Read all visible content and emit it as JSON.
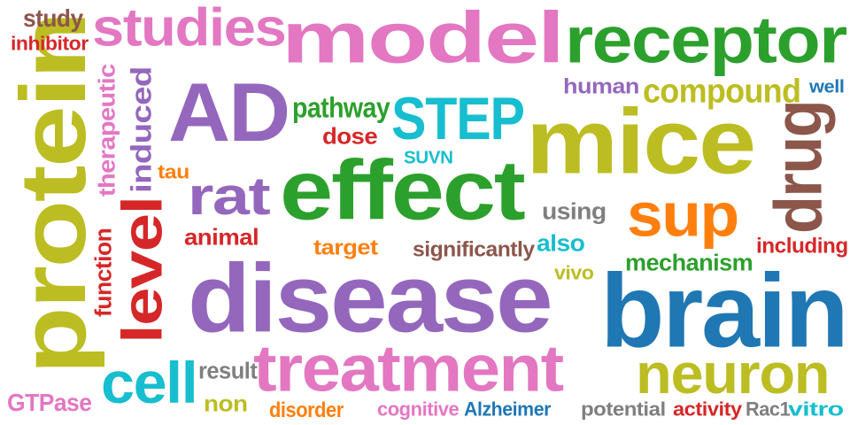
{
  "colors": {
    "olive": "#bcbd22",
    "pink": "#e377c2",
    "purple": "#9467bd",
    "green": "#2ca02c",
    "teal": "#17becf",
    "blue": "#1f77b4",
    "red": "#d62728",
    "orange": "#ff7f0e",
    "brown": "#8c564b",
    "gray": "#7f7f7f"
  },
  "words": [
    {
      "text": "protein",
      "color": "olive",
      "size": 112,
      "rotated": true
    },
    {
      "text": "study",
      "color": "brown",
      "size": 24
    },
    {
      "text": "inhibitor",
      "color": "red",
      "size": 18
    },
    {
      "text": "studies",
      "color": "pink",
      "size": 62
    },
    {
      "text": "model",
      "color": "pink",
      "size": 92
    },
    {
      "text": "receptor",
      "color": "green",
      "size": 78
    },
    {
      "text": "therapeutic",
      "color": "pink",
      "size": 22,
      "rotated": true
    },
    {
      "text": "induced",
      "color": "purple",
      "size": 28,
      "rotated": true
    },
    {
      "text": "AD",
      "color": "purple",
      "size": 112
    },
    {
      "text": "human",
      "color": "purple",
      "size": 22
    },
    {
      "text": "compound",
      "color": "olive",
      "size": 36
    },
    {
      "text": "well",
      "color": "blue",
      "size": 18
    },
    {
      "text": "pathway",
      "color": "green",
      "size": 28
    },
    {
      "text": "STEP",
      "color": "teal",
      "size": 56
    },
    {
      "text": "mice",
      "color": "olive",
      "size": 100
    },
    {
      "text": "drug",
      "color": "brown",
      "size": 72,
      "rotated": true
    },
    {
      "text": "dose",
      "color": "red",
      "size": 24
    },
    {
      "text": "SUVN",
      "color": "teal",
      "size": 18
    },
    {
      "text": "tau",
      "color": "orange",
      "size": 20
    },
    {
      "text": "effect",
      "color": "green",
      "size": 98
    },
    {
      "text": "rat",
      "color": "purple",
      "size": 60
    },
    {
      "text": "level",
      "color": "red",
      "size": 62,
      "rotated": true
    },
    {
      "text": "sup",
      "color": "orange",
      "size": 68
    },
    {
      "text": "using",
      "color": "gray",
      "size": 22
    },
    {
      "text": "animal",
      "color": "red",
      "size": 24
    },
    {
      "text": "target",
      "color": "orange",
      "size": 22
    },
    {
      "text": "significantly",
      "color": "brown",
      "size": 22
    },
    {
      "text": "also",
      "color": "teal",
      "size": 22
    },
    {
      "text": "including",
      "color": "red",
      "size": 22
    },
    {
      "text": "function",
      "color": "red",
      "size": 22,
      "rotated": true
    },
    {
      "text": "mechanism",
      "color": "green",
      "size": 22
    },
    {
      "text": "disease",
      "color": "purple",
      "size": 112
    },
    {
      "text": "vivo",
      "color": "olive",
      "size": 20
    },
    {
      "text": "brain",
      "color": "blue",
      "size": 120
    },
    {
      "text": "treatment",
      "color": "pink",
      "size": 76
    },
    {
      "text": "cell",
      "color": "teal",
      "size": 60
    },
    {
      "text": "result",
      "color": "gray",
      "size": 22
    },
    {
      "text": "neuron",
      "color": "olive",
      "size": 64
    },
    {
      "text": "GTPase",
      "color": "pink",
      "size": 24
    },
    {
      "text": "non",
      "color": "olive",
      "size": 24
    },
    {
      "text": "disorder",
      "color": "orange",
      "size": 20
    },
    {
      "text": "cognitive",
      "color": "pink",
      "size": 20
    },
    {
      "text": "Alzheimer",
      "color": "blue",
      "size": 20
    },
    {
      "text": "potential",
      "color": "gray",
      "size": 20
    },
    {
      "text": "activity",
      "color": "red",
      "size": 20
    },
    {
      "text": "Rac1",
      "color": "gray",
      "size": 20
    },
    {
      "text": "vitro",
      "color": "teal",
      "size": 20
    }
  ]
}
